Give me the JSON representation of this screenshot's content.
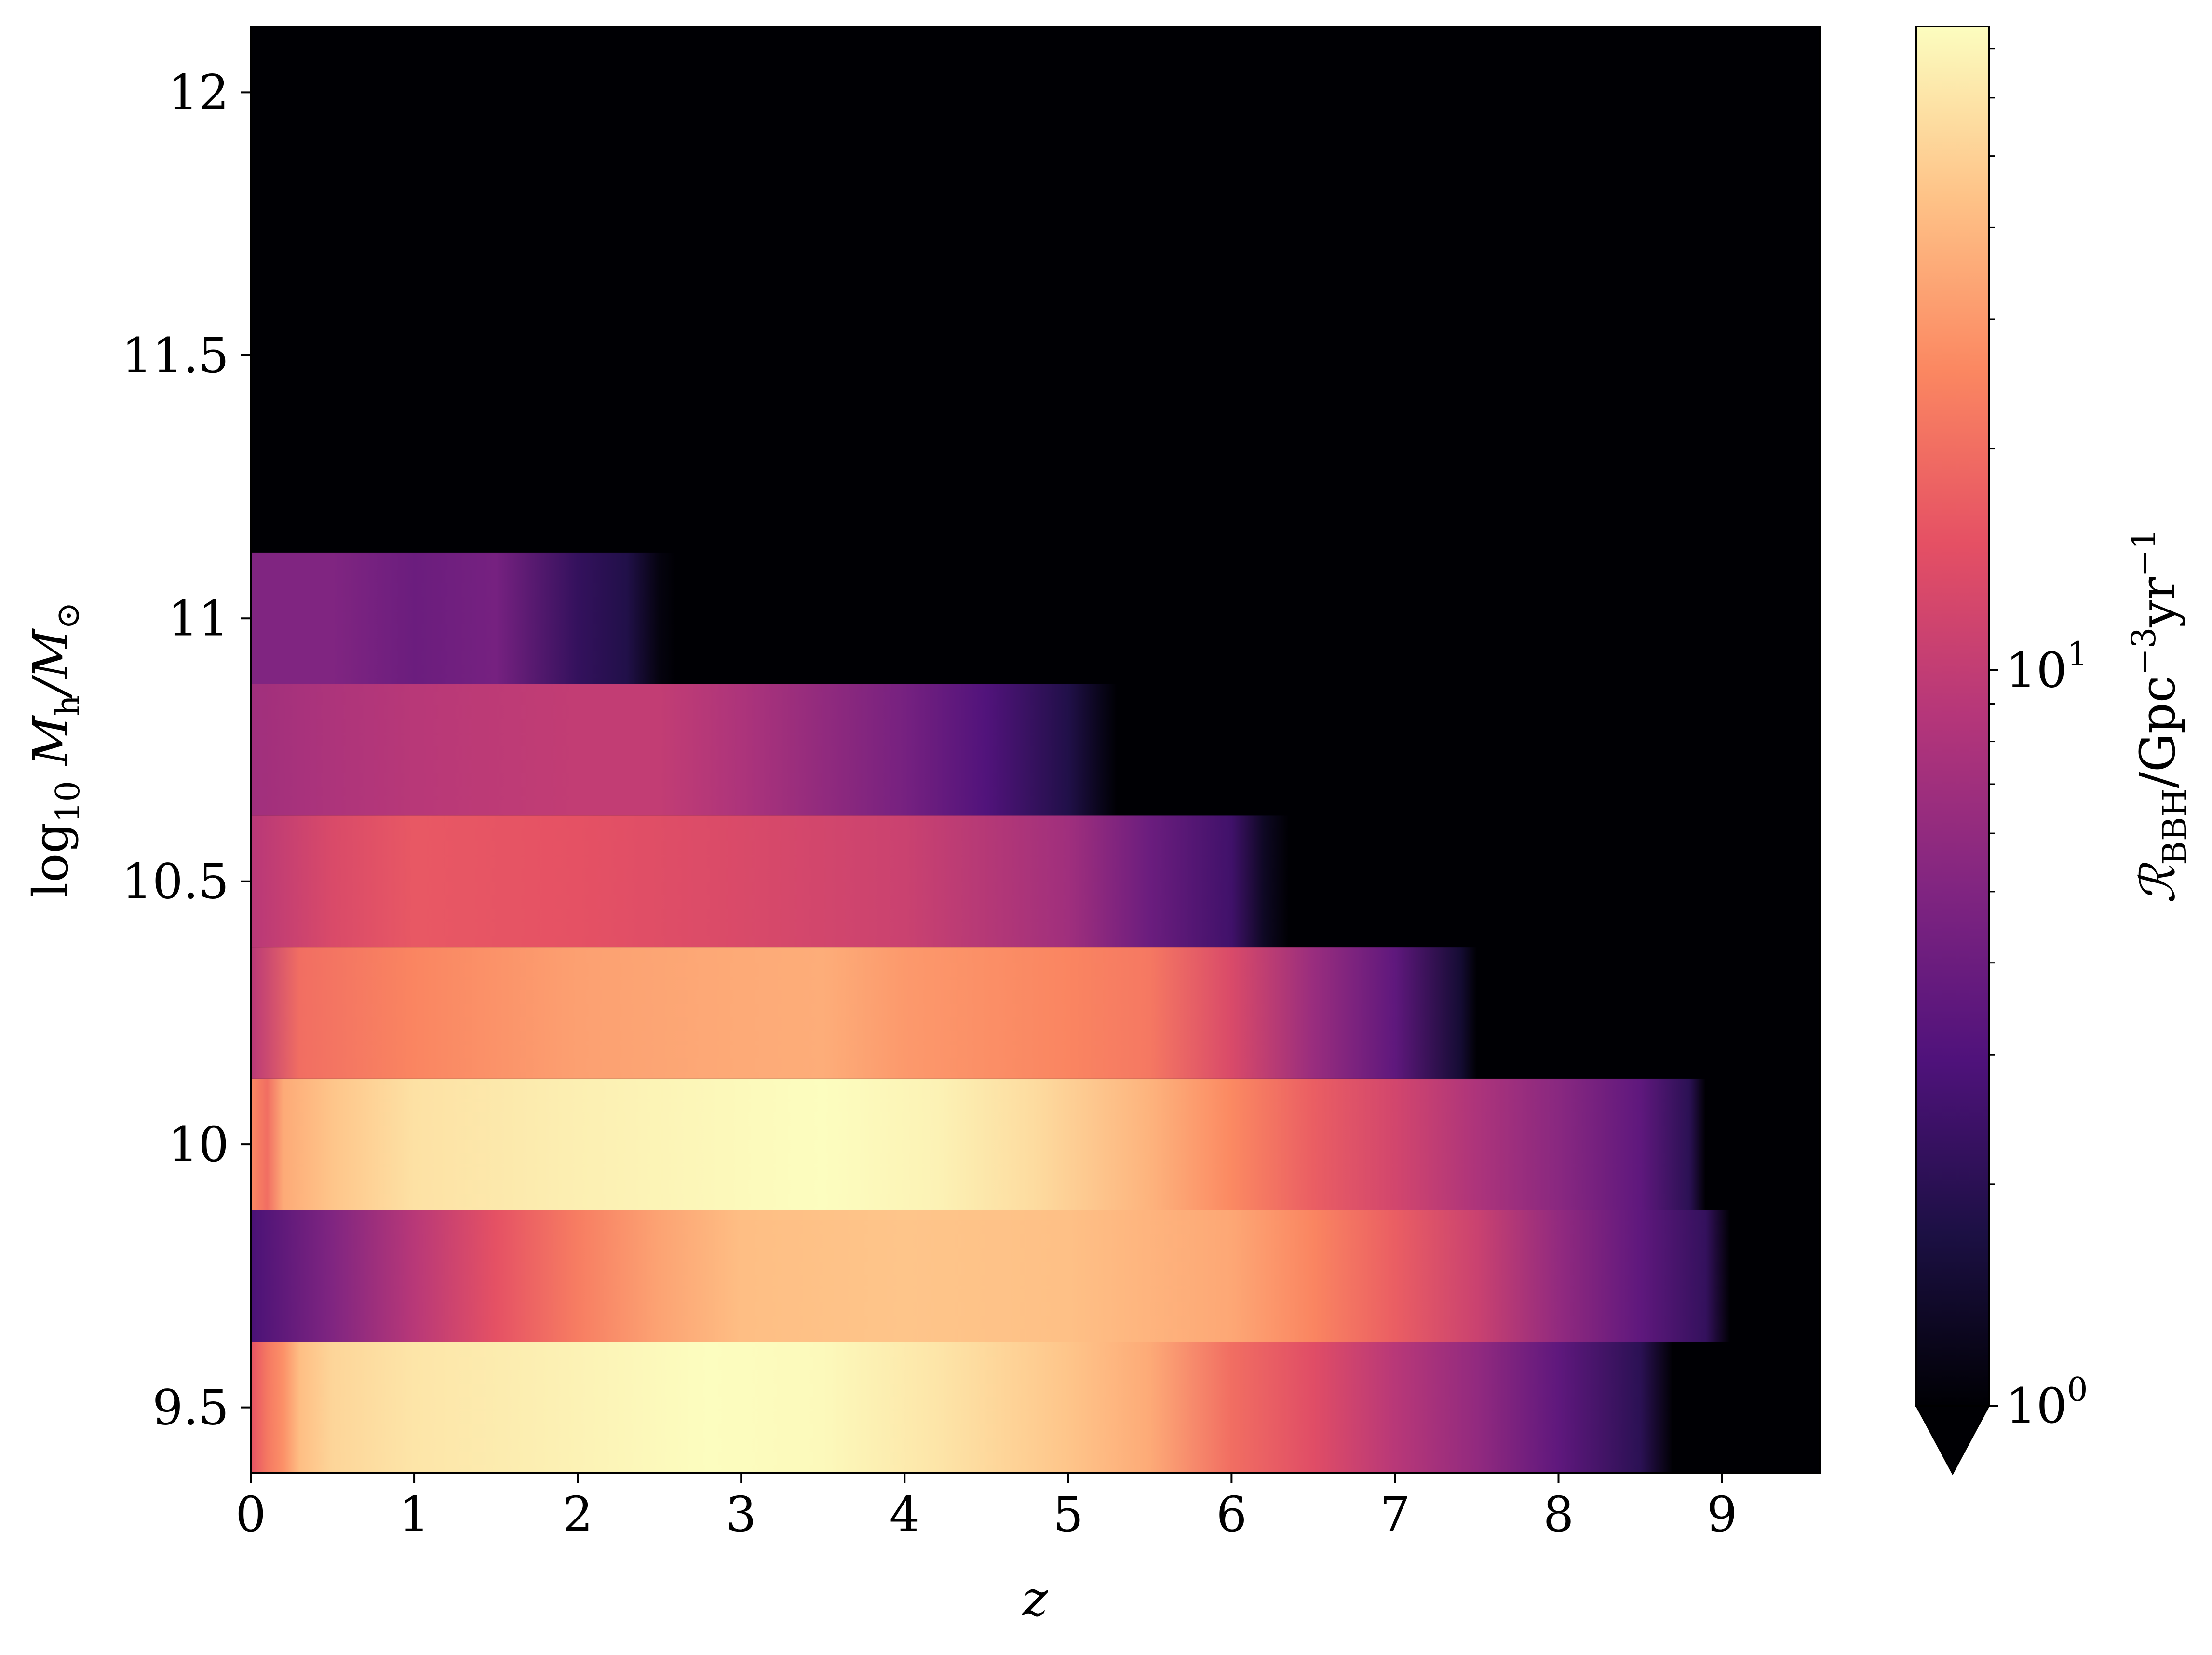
{
  "chart_data": {
    "type": "heatmap",
    "title": "",
    "xlabel": "z",
    "ylabel_parts": {
      "base": "log",
      "sub1": "10",
      "mid": " M",
      "sub2": "h",
      "tail": "/M",
      "sub3": "⊙"
    },
    "colorbar_label_parts": {
      "base": "ℛ",
      "sub": "BBH",
      "mid": "/Gpc",
      "sup1": "−3",
      "mid2": "yr",
      "sup2": "−1"
    },
    "colormap": "magma",
    "colorbar_scale": "log",
    "colorbar_range": [
      1,
      75
    ],
    "colorbar_extend": "min",
    "colorbar_ticks": [
      {
        "value": 1,
        "base": "10",
        "exp": "0"
      },
      {
        "value": 10,
        "base": "10",
        "exp": "1"
      }
    ],
    "xlim": [
      0,
      9.6
    ],
    "ylim": [
      9.375,
      12.125
    ],
    "x_ticks": [
      "0",
      "1",
      "2",
      "3",
      "4",
      "5",
      "6",
      "7",
      "8",
      "9"
    ],
    "y_ticks": [
      "9.5",
      "10",
      "10.5",
      "11",
      "11.5",
      "12"
    ],
    "background_value": 0,
    "rows": [
      {
        "center": 9.5,
        "profile": [
          [
            0.0,
            15
          ],
          [
            0.1,
            22
          ],
          [
            0.2,
            28
          ],
          [
            0.3,
            42
          ],
          [
            0.5,
            52
          ],
          [
            1.0,
            60
          ],
          [
            2.0,
            68
          ],
          [
            2.8,
            75
          ],
          [
            3.5,
            72
          ],
          [
            4.2,
            60
          ],
          [
            5.0,
            45
          ],
          [
            5.5,
            35
          ],
          [
            6.0,
            20
          ],
          [
            6.5,
            14
          ],
          [
            7.0,
            9
          ],
          [
            7.5,
            6
          ],
          [
            8.0,
            3.5
          ],
          [
            8.5,
            2
          ],
          [
            8.7,
            1
          ],
          [
            8.8,
            0
          ]
        ]
      },
      {
        "center": 9.75,
        "profile": [
          [
            0.0,
            2.8
          ],
          [
            0.5,
            5
          ],
          [
            1.0,
            9
          ],
          [
            1.5,
            15
          ],
          [
            2.0,
            23
          ],
          [
            2.5,
            33
          ],
          [
            3.0,
            42
          ],
          [
            4.0,
            45
          ],
          [
            5.0,
            43
          ],
          [
            6.0,
            34
          ],
          [
            6.5,
            25
          ],
          [
            7.0,
            17
          ],
          [
            7.5,
            11
          ],
          [
            8.0,
            6
          ],
          [
            8.5,
            3.5
          ],
          [
            8.9,
            2.2
          ],
          [
            9.05,
            1
          ],
          [
            9.1,
            0
          ]
        ]
      },
      {
        "center": 10.0,
        "profile": [
          [
            0.0,
            26
          ],
          [
            0.1,
            20
          ],
          [
            0.2,
            35
          ],
          [
            0.5,
            45
          ],
          [
            1.0,
            58
          ],
          [
            2.0,
            66
          ],
          [
            3.0,
            72
          ],
          [
            3.5,
            75
          ],
          [
            4.2,
            68
          ],
          [
            4.8,
            55
          ],
          [
            5.5,
            38
          ],
          [
            6.0,
            26
          ],
          [
            6.5,
            17
          ],
          [
            7.0,
            12
          ],
          [
            7.5,
            8
          ],
          [
            8.0,
            5.5
          ],
          [
            8.5,
            3.5
          ],
          [
            8.8,
            2
          ],
          [
            8.9,
            1
          ],
          [
            8.95,
            0
          ]
        ]
      },
      {
        "center": 10.25,
        "profile": [
          [
            0.0,
            9
          ],
          [
            0.3,
            20
          ],
          [
            1.0,
            25
          ],
          [
            2.0,
            32
          ],
          [
            3.0,
            35
          ],
          [
            3.5,
            36
          ],
          [
            4.0,
            30
          ],
          [
            5.0,
            25
          ],
          [
            5.5,
            22
          ],
          [
            6.0,
            13
          ],
          [
            6.5,
            6.5
          ],
          [
            7.0,
            3.5
          ],
          [
            7.4,
            1.5
          ],
          [
            7.5,
            0
          ]
        ]
      },
      {
        "center": 10.5,
        "profile": [
          [
            0.0,
            9
          ],
          [
            0.5,
            13
          ],
          [
            1.0,
            16
          ],
          [
            2.0,
            15
          ],
          [
            3.0,
            13
          ],
          [
            4.0,
            11
          ],
          [
            5.0,
            7
          ],
          [
            5.5,
            4
          ],
          [
            6.0,
            2.5
          ],
          [
            6.2,
            1.3
          ],
          [
            6.35,
            0
          ]
        ]
      },
      {
        "center": 10.75,
        "profile": [
          [
            0.0,
            7
          ],
          [
            0.5,
            8
          ],
          [
            1.0,
            9
          ],
          [
            2.0,
            10
          ],
          [
            2.5,
            10
          ],
          [
            3.0,
            8
          ],
          [
            4.0,
            4.5
          ],
          [
            4.5,
            3
          ],
          [
            5.0,
            1.8
          ],
          [
            5.2,
            1.2
          ],
          [
            5.3,
            0
          ]
        ]
      },
      {
        "center": 11.0,
        "profile": [
          [
            0.0,
            5
          ],
          [
            0.5,
            5
          ],
          [
            1.0,
            4
          ],
          [
            1.5,
            4.5
          ],
          [
            2.0,
            2.2
          ],
          [
            2.3,
            1.8
          ],
          [
            2.5,
            1.1
          ],
          [
            2.6,
            0
          ]
        ]
      },
      {
        "center": 11.25,
        "profile": []
      },
      {
        "center": 11.5,
        "profile": []
      },
      {
        "center": 11.75,
        "profile": []
      },
      {
        "center": 12.0,
        "profile": []
      }
    ]
  }
}
